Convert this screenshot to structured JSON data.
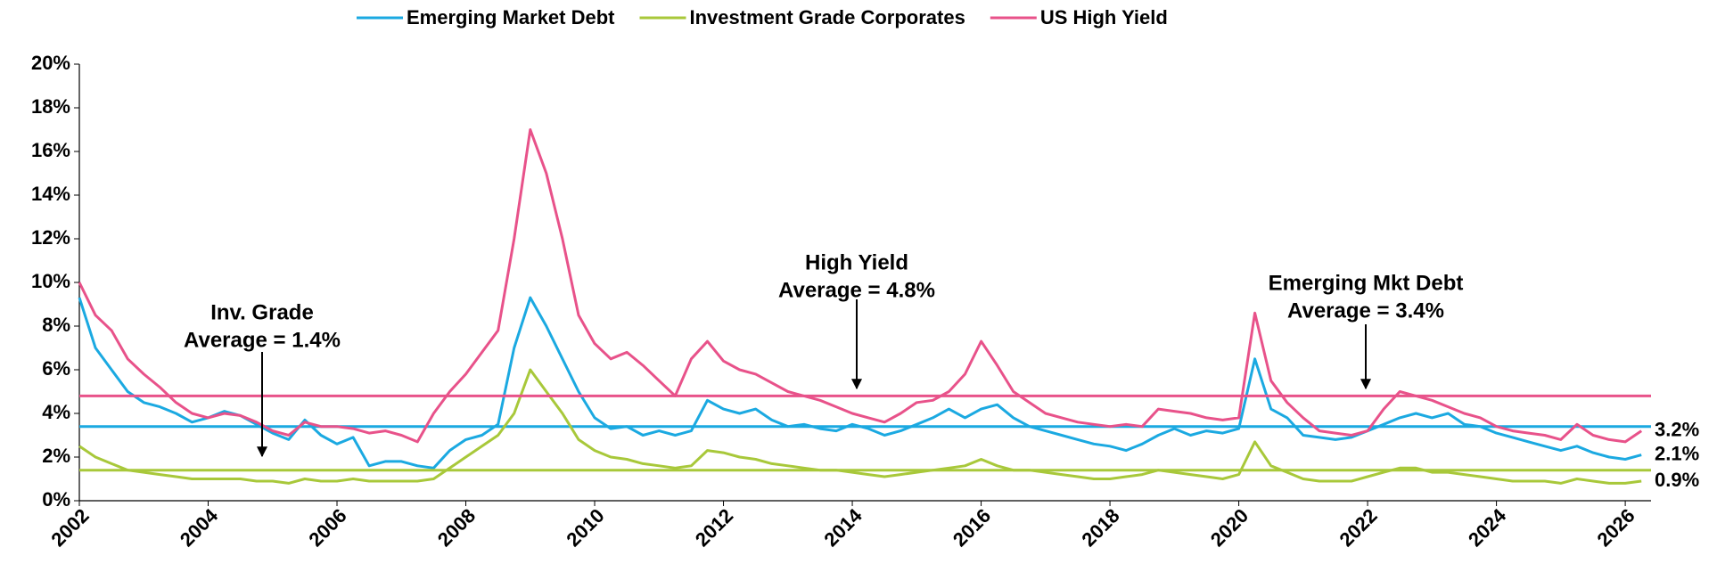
{
  "chart_data": {
    "type": "line",
    "x": [
      2002,
      2002.25,
      2002.5,
      2002.75,
      2003,
      2003.25,
      2003.5,
      2003.75,
      2004,
      2004.25,
      2004.5,
      2004.75,
      2005,
      2005.25,
      2005.5,
      2005.75,
      2006,
      2006.25,
      2006.5,
      2006.75,
      2007,
      2007.25,
      2007.5,
      2007.75,
      2008,
      2008.25,
      2008.5,
      2008.75,
      2009,
      2009.25,
      2009.5,
      2009.75,
      2010,
      2010.25,
      2010.5,
      2010.75,
      2011,
      2011.25,
      2011.5,
      2011.75,
      2012,
      2012.25,
      2012.5,
      2012.75,
      2013,
      2013.25,
      2013.5,
      2013.75,
      2014,
      2014.25,
      2014.5,
      2014.75,
      2015,
      2015.25,
      2015.5,
      2015.75,
      2016,
      2016.25,
      2016.5,
      2016.75,
      2017,
      2017.25,
      2017.5,
      2017.75,
      2018,
      2018.25,
      2018.5,
      2018.75,
      2019,
      2019.25,
      2019.5,
      2019.75,
      2020,
      2020.25,
      2020.5,
      2020.75,
      2021,
      2021.25,
      2021.5,
      2021.75,
      2022,
      2022.25,
      2022.5,
      2022.75,
      2023,
      2023.25,
      2023.5,
      2023.75,
      2024,
      2024.25,
      2024.5,
      2024.75,
      2025,
      2025.25,
      2025.5,
      2025.75,
      2026,
      2026.25
    ],
    "series": [
      {
        "name": "Emerging Market Debt",
        "color": "#1ba9e1",
        "average": 3.4,
        "end_label": "2.1%",
        "values": [
          9.3,
          7.0,
          6.0,
          5.0,
          4.5,
          4.3,
          4.0,
          3.6,
          3.8,
          4.1,
          3.9,
          3.5,
          3.1,
          2.8,
          3.7,
          3.0,
          2.6,
          2.9,
          1.6,
          1.8,
          1.8,
          1.6,
          1.5,
          2.3,
          2.8,
          3.0,
          3.5,
          7.0,
          9.3,
          8.0,
          6.5,
          5.0,
          3.8,
          3.3,
          3.4,
          3.0,
          3.2,
          3.0,
          3.2,
          4.6,
          4.2,
          4.0,
          4.2,
          3.7,
          3.4,
          3.5,
          3.3,
          3.2,
          3.5,
          3.3,
          3.0,
          3.2,
          3.5,
          3.8,
          4.2,
          3.8,
          4.2,
          4.4,
          3.8,
          3.4,
          3.2,
          3.0,
          2.8,
          2.6,
          2.5,
          2.3,
          2.6,
          3.0,
          3.3,
          3.0,
          3.2,
          3.1,
          3.3,
          6.5,
          4.2,
          3.8,
          3.0,
          2.9,
          2.8,
          2.9,
          3.2,
          3.5,
          3.8,
          4.0,
          3.8,
          4.0,
          3.5,
          3.4,
          3.1,
          2.9,
          2.7,
          2.5,
          2.3,
          2.5,
          2.2,
          2.0,
          1.9,
          2.1
        ]
      },
      {
        "name": "Investment Grade Corporates",
        "color": "#a8c83a",
        "average": 1.4,
        "end_label": "0.9%",
        "values": [
          2.5,
          2.0,
          1.7,
          1.4,
          1.3,
          1.2,
          1.1,
          1.0,
          1.0,
          1.0,
          1.0,
          0.9,
          0.9,
          0.8,
          1.0,
          0.9,
          0.9,
          1.0,
          0.9,
          0.9,
          0.9,
          0.9,
          1.0,
          1.5,
          2.0,
          2.5,
          3.0,
          4.0,
          6.0,
          5.0,
          4.0,
          2.8,
          2.3,
          2.0,
          1.9,
          1.7,
          1.6,
          1.5,
          1.6,
          2.3,
          2.2,
          2.0,
          1.9,
          1.7,
          1.6,
          1.5,
          1.4,
          1.4,
          1.3,
          1.2,
          1.1,
          1.2,
          1.3,
          1.4,
          1.5,
          1.6,
          1.9,
          1.6,
          1.4,
          1.4,
          1.3,
          1.2,
          1.1,
          1.0,
          1.0,
          1.1,
          1.2,
          1.4,
          1.3,
          1.2,
          1.1,
          1.0,
          1.2,
          2.7,
          1.6,
          1.3,
          1.0,
          0.9,
          0.9,
          0.9,
          1.1,
          1.3,
          1.5,
          1.5,
          1.3,
          1.3,
          1.2,
          1.1,
          1.0,
          0.9,
          0.9,
          0.9,
          0.8,
          1.0,
          0.9,
          0.8,
          0.8,
          0.9
        ]
      },
      {
        "name": "US High Yield",
        "color": "#e8528a",
        "average": 4.8,
        "end_label": "3.2%",
        "values": [
          10.0,
          8.5,
          7.8,
          6.5,
          5.8,
          5.2,
          4.5,
          4.0,
          3.8,
          4.0,
          3.9,
          3.6,
          3.2,
          3.0,
          3.6,
          3.4,
          3.4,
          3.3,
          3.1,
          3.2,
          3.0,
          2.7,
          4.0,
          5.0,
          5.8,
          6.8,
          7.8,
          12.0,
          17.0,
          15.0,
          12.0,
          8.5,
          7.2,
          6.5,
          6.8,
          6.2,
          5.5,
          4.8,
          6.5,
          7.3,
          6.4,
          6.0,
          5.8,
          5.4,
          5.0,
          4.8,
          4.6,
          4.3,
          4.0,
          3.8,
          3.6,
          4.0,
          4.5,
          4.6,
          5.0,
          5.8,
          7.3,
          6.2,
          5.0,
          4.5,
          4.0,
          3.8,
          3.6,
          3.5,
          3.4,
          3.5,
          3.4,
          4.2,
          4.1,
          4.0,
          3.8,
          3.7,
          3.8,
          8.6,
          5.5,
          4.5,
          3.8,
          3.2,
          3.1,
          3.0,
          3.2,
          4.2,
          5.0,
          4.8,
          4.6,
          4.3,
          4.0,
          3.8,
          3.4,
          3.2,
          3.1,
          3.0,
          2.8,
          3.5,
          3.0,
          2.8,
          2.7,
          3.2
        ]
      }
    ],
    "annotations": [
      {
        "lines": [
          "Inv. Grade",
          "Average = 1.4%"
        ]
      },
      {
        "lines": [
          "High Yield",
          "Average = 4.8%"
        ]
      },
      {
        "lines": [
          "Emerging Mkt Debt",
          "Average = 3.4%"
        ]
      }
    ],
    "xlim": [
      2002,
      2026.4
    ],
    "xticks": [
      2002,
      2004,
      2006,
      2008,
      2010,
      2012,
      2014,
      2016,
      2018,
      2020,
      2022,
      2024,
      2026
    ],
    "ylim": [
      0,
      20
    ],
    "yticks": [
      {
        "value": 0,
        "label": "0%"
      },
      {
        "value": 2,
        "label": "2%"
      },
      {
        "value": 4,
        "label": "4%"
      },
      {
        "value": 6,
        "label": "6%"
      },
      {
        "value": 8,
        "label": "8%"
      },
      {
        "value": 10,
        "label": "10%"
      },
      {
        "value": 12,
        "label": "12%"
      },
      {
        "value": 14,
        "label": "14%"
      },
      {
        "value": 16,
        "label": "16%"
      },
      {
        "value": 18,
        "label": "18%"
      },
      {
        "value": 20,
        "label": "20%"
      }
    ],
    "legend": "top"
  }
}
